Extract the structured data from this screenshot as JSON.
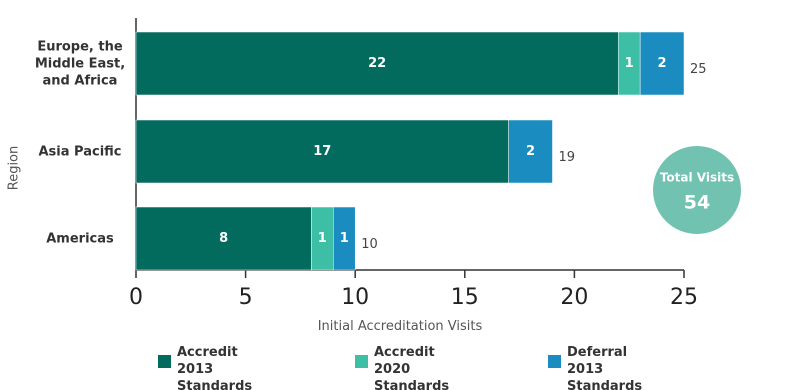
{
  "chart_data": {
    "type": "stacked-bar-horizontal",
    "x_label": "Initial Accreditation Visits",
    "y_label": "Region",
    "categories": [
      "Europe, the Middle East, and Africa",
      "Asia Pacific",
      "Americas"
    ],
    "series": [
      {
        "name": "Accredit 2013 Standards",
        "color": "#036b5e",
        "values": [
          22,
          17,
          8
        ]
      },
      {
        "name": "Accredit 2020 Standards",
        "color": "#3cbfa5",
        "values": [
          1,
          null,
          1
        ]
      },
      {
        "name": "Deferral 2013 Standards",
        "color": "#1a8cc0",
        "values": [
          2,
          2,
          1
        ]
      }
    ],
    "totals": [
      25,
      19,
      10
    ],
    "total_label": "Total Visits",
    "total_value": 54,
    "total_color": "#72c2b1",
    "xlim": [
      0,
      25
    ],
    "xticks": [
      0,
      5,
      10,
      15,
      20,
      25
    ]
  }
}
